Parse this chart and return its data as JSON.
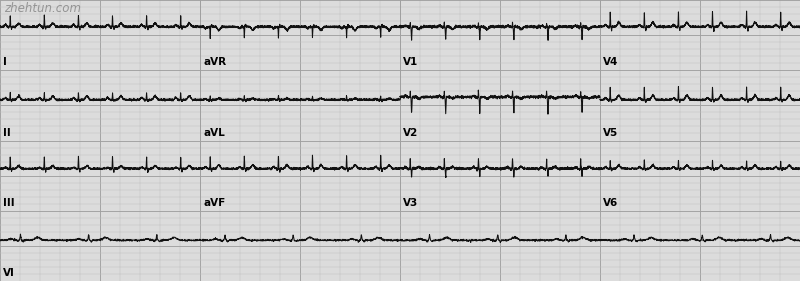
{
  "background_color": "#dcdcdc",
  "grid_minor_color": "#c0c0c0",
  "grid_major_color": "#a0a0a0",
  "ecg_color": "#111111",
  "fig_width": 8.0,
  "fig_height": 2.81,
  "dpi": 100,
  "watermark": "zhehtun.com",
  "watermark_color": "#888888",
  "line_width": 0.75,
  "label_fontsize": 7.5,
  "watermark_fontsize": 8.5,
  "n_rows": 4,
  "row_labels": [
    [
      "I",
      "aVR",
      "V1",
      "V4"
    ],
    [
      "II",
      "aVL",
      "V2",
      "V5"
    ],
    [
      "III",
      "aVF",
      "V3",
      "V6"
    ],
    [
      "VI",
      "",
      "",
      ""
    ]
  ]
}
